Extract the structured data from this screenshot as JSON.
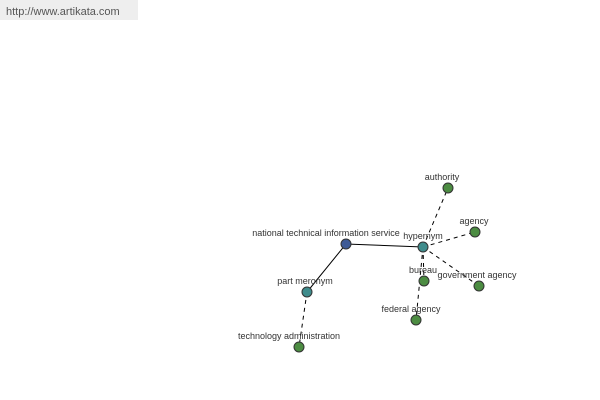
{
  "header": {
    "url": "http://www.artikata.com"
  },
  "nodes": [
    {
      "label": "national technical information service"
    },
    {
      "label": "hypernym"
    },
    {
      "label": "part meronym"
    },
    {
      "label": "authority"
    },
    {
      "label": "agency"
    },
    {
      "label": "bureau"
    },
    {
      "label": "government agency"
    },
    {
      "label": "federal agency"
    },
    {
      "label": "technology administration"
    }
  ]
}
